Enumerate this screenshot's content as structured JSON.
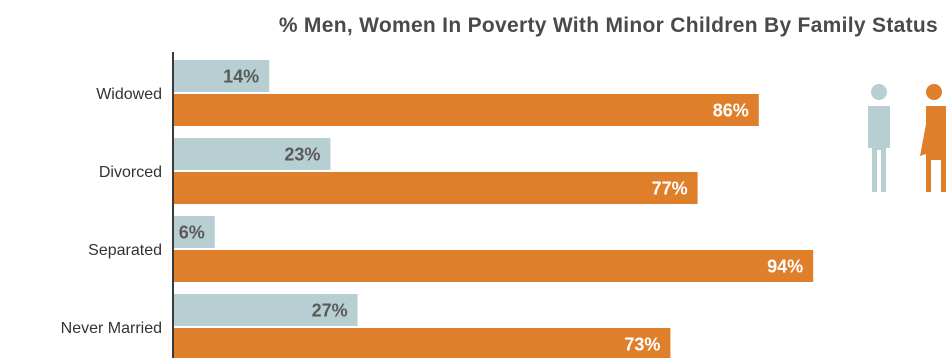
{
  "chart_data": {
    "type": "bar",
    "orientation": "horizontal",
    "title": "% Men, Women In Poverty With Minor Children By Family Status",
    "categories": [
      "Widowed",
      "Divorced",
      "Separated",
      "Never Married"
    ],
    "series": [
      {
        "values": [
          14,
          23,
          6,
          27
        ],
        "labels": [
          "14%",
          "23%",
          "6%",
          "27%"
        ],
        "color": "#b7ced3",
        "label_color": "#5a5a5a",
        "icon": "man-icon"
      },
      {
        "values": [
          86,
          77,
          94,
          73
        ],
        "labels": [
          "86%",
          "77%",
          "94%",
          "73%"
        ],
        "color": "#e07f2b",
        "label_color": "#ffffff",
        "icon": "woman-icon"
      }
    ],
    "xlim": [
      0,
      100
    ],
    "grid": false,
    "axis_color": "#3a3a3a"
  }
}
